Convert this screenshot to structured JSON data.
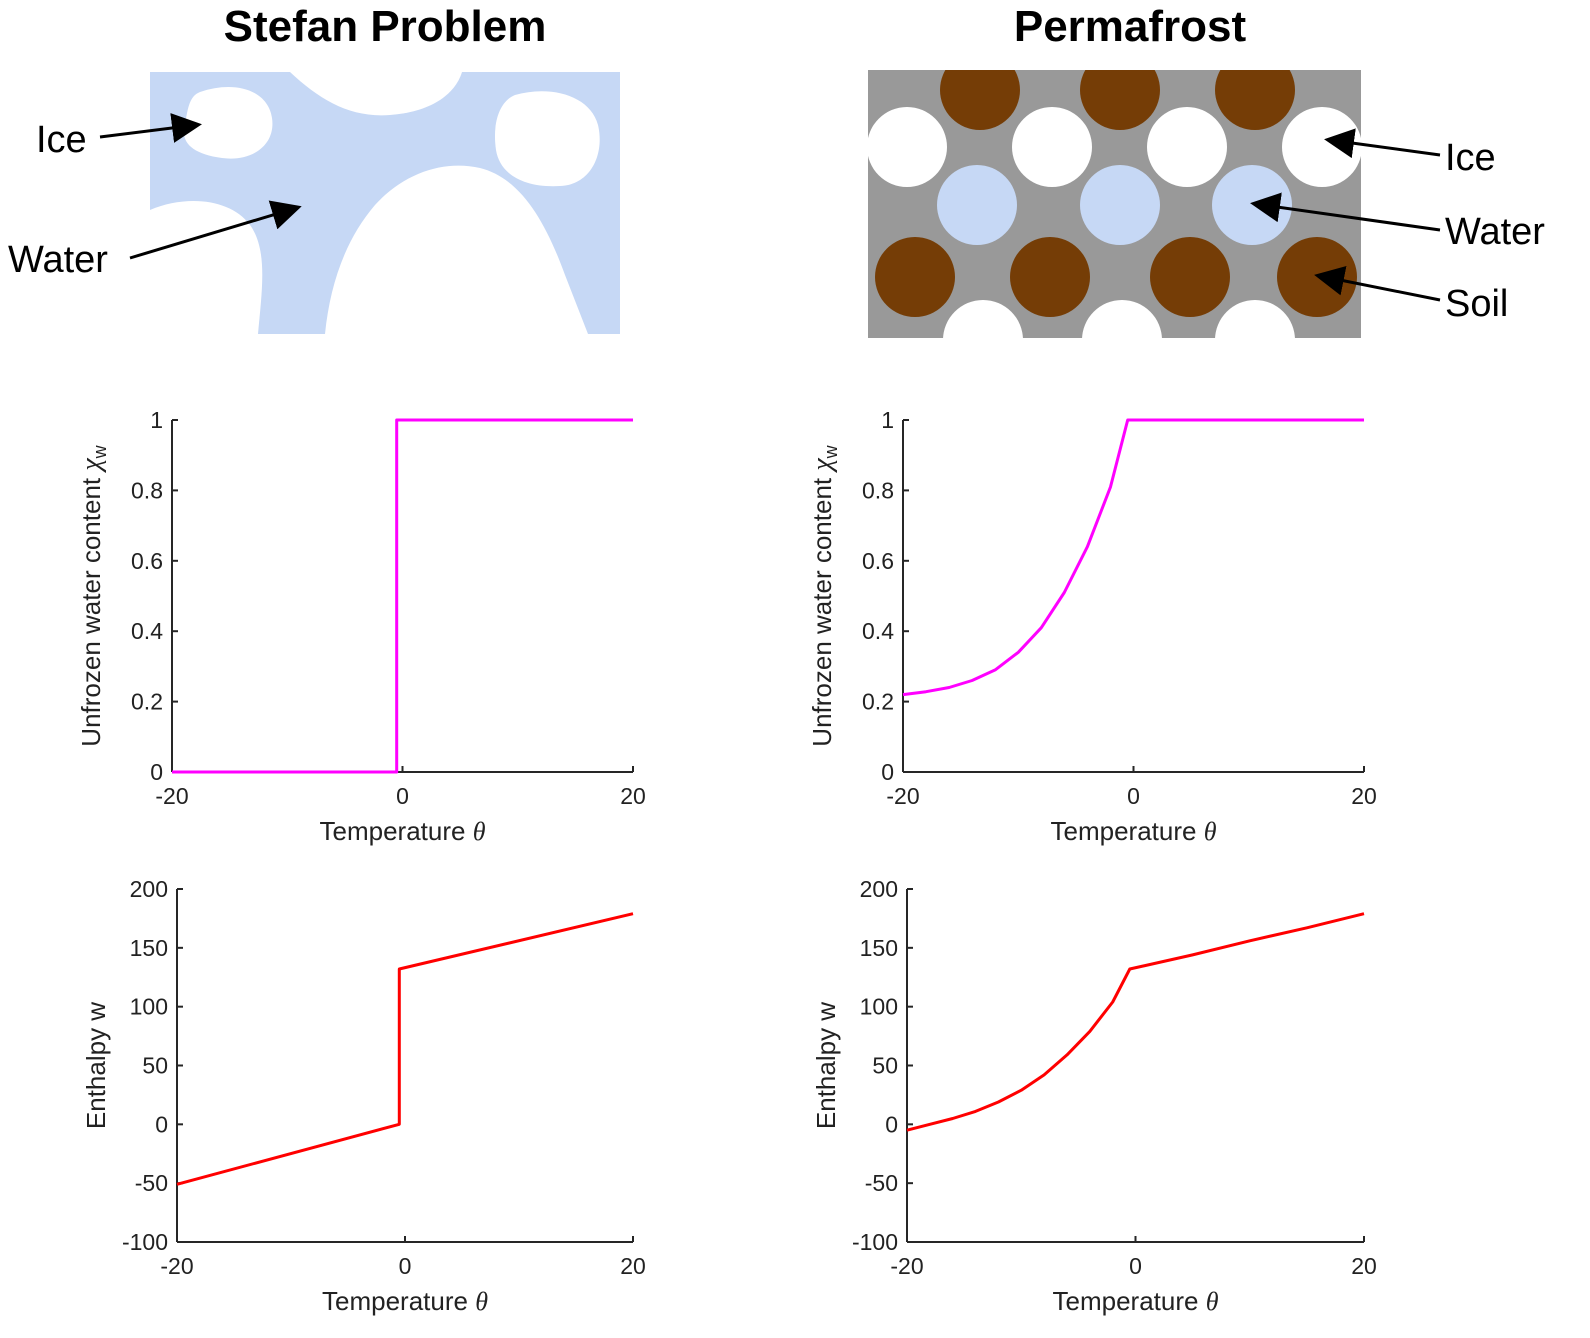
{
  "titles": {
    "left": "Stefan Problem",
    "right": "Permafrost"
  },
  "illustrations": {
    "stefan": {
      "labels": [
        "Ice",
        "Water"
      ]
    },
    "permafrost": {
      "labels": [
        "Ice",
        "Water",
        "Soil"
      ]
    },
    "colors": {
      "water": "#c6d8f5",
      "ice": "#ffffff",
      "soil": "#753d06",
      "matrix": "#999999"
    }
  },
  "chart_data": [
    {
      "id": "stefan-water",
      "type": "line",
      "xlabel_text": "Temperature ",
      "xlabel_symbol": "θ",
      "ylabel_text": "Unfrozen water content ",
      "ylabel_symbol": "χ",
      "ylabel_sub": "w",
      "xlim": [
        -20,
        20
      ],
      "ylim": [
        0,
        1
      ],
      "xticks": [
        -20,
        0,
        20
      ],
      "yticks": [
        0,
        0.2,
        0.4,
        0.6,
        0.8,
        1
      ],
      "xtick_labels": [
        "-20",
        "0",
        "20"
      ],
      "ytick_labels": [
        "0",
        "0.2",
        "0.4",
        "0.6",
        "0.8",
        "1"
      ],
      "color": "#ff00ff",
      "x": [
        -20,
        -0.5,
        -0.5,
        20
      ],
      "y": [
        0,
        0,
        1,
        1
      ]
    },
    {
      "id": "permafrost-water",
      "type": "line",
      "xlabel_text": "Temperature ",
      "xlabel_symbol": "θ",
      "ylabel_text": "Unfrozen water content ",
      "ylabel_symbol": "χ",
      "ylabel_sub": "w",
      "xlim": [
        -20,
        20
      ],
      "ylim": [
        0,
        1
      ],
      "xticks": [
        -20,
        0,
        20
      ],
      "yticks": [
        0,
        0.2,
        0.4,
        0.6,
        0.8,
        1
      ],
      "xtick_labels": [
        "-20",
        "0",
        "20"
      ],
      "ytick_labels": [
        "0",
        "0.2",
        "0.4",
        "0.6",
        "0.8",
        "1"
      ],
      "color": "#ff00ff",
      "x": [
        -20,
        -18,
        -16,
        -14,
        -12,
        -10,
        -8,
        -6,
        -4,
        -2,
        -0.5,
        5,
        10,
        15,
        20
      ],
      "y": [
        0.22,
        0.228,
        0.24,
        0.26,
        0.29,
        0.34,
        0.41,
        0.51,
        0.64,
        0.81,
        1,
        1,
        1,
        1,
        1
      ]
    },
    {
      "id": "stefan-enthalpy",
      "type": "line",
      "xlabel_text": "Temperature ",
      "xlabel_symbol": "θ",
      "ylabel_text": "Enthalpy w",
      "ylabel_symbol": "",
      "ylabel_sub": "",
      "xlim": [
        -20,
        20
      ],
      "ylim": [
        -100,
        200
      ],
      "xticks": [
        -20,
        0,
        20
      ],
      "yticks": [
        -100,
        -50,
        0,
        50,
        100,
        150,
        200
      ],
      "xtick_labels": [
        "-20",
        "0",
        "20"
      ],
      "ytick_labels": [
        "-100",
        "-50",
        "0",
        "50",
        "100",
        "150",
        "200"
      ],
      "color": "#ff0000",
      "x": [
        -20,
        -0.5,
        -0.5,
        20
      ],
      "y": [
        -51,
        0,
        132,
        179
      ]
    },
    {
      "id": "permafrost-enthalpy",
      "type": "line",
      "xlabel_text": "Temperature ",
      "xlabel_symbol": "θ",
      "ylabel_text": "Enthalpy w",
      "ylabel_symbol": "",
      "ylabel_sub": "",
      "xlim": [
        -20,
        20
      ],
      "ylim": [
        -100,
        200
      ],
      "xticks": [
        -20,
        0,
        20
      ],
      "yticks": [
        -100,
        -50,
        0,
        50,
        100,
        150,
        200
      ],
      "xtick_labels": [
        "-20",
        "0",
        "20"
      ],
      "ytick_labels": [
        "-100",
        "-50",
        "0",
        "50",
        "100",
        "150",
        "200"
      ],
      "color": "#ff0000",
      "x": [
        -20,
        -18,
        -16,
        -14,
        -12,
        -10,
        -8,
        -6,
        -4,
        -2,
        -0.5,
        5,
        10,
        15,
        20
      ],
      "y": [
        -5,
        0,
        5,
        11,
        19,
        29,
        42,
        59,
        79,
        104,
        132,
        144,
        156,
        167,
        179
      ]
    }
  ]
}
